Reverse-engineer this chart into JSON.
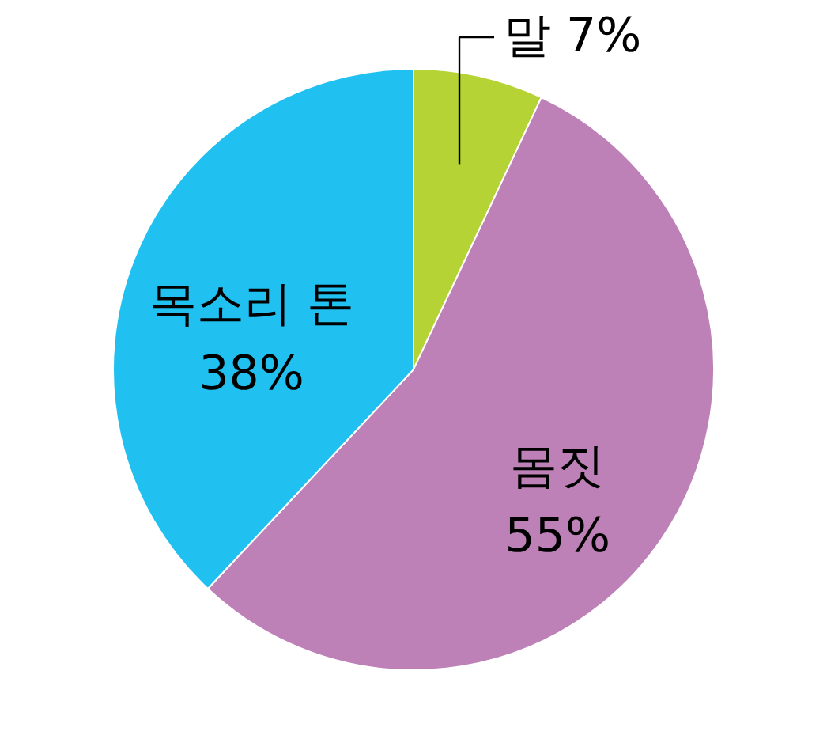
{
  "chart_data": {
    "type": "pie",
    "categories": [
      "말",
      "몸짓",
      "목소리 톤"
    ],
    "values": [
      7,
      55,
      38
    ],
    "colors": [
      "#b5d334",
      "#bd80b7",
      "#20c1f1"
    ],
    "value_labels": [
      "7%",
      "55%",
      "38%"
    ]
  }
}
